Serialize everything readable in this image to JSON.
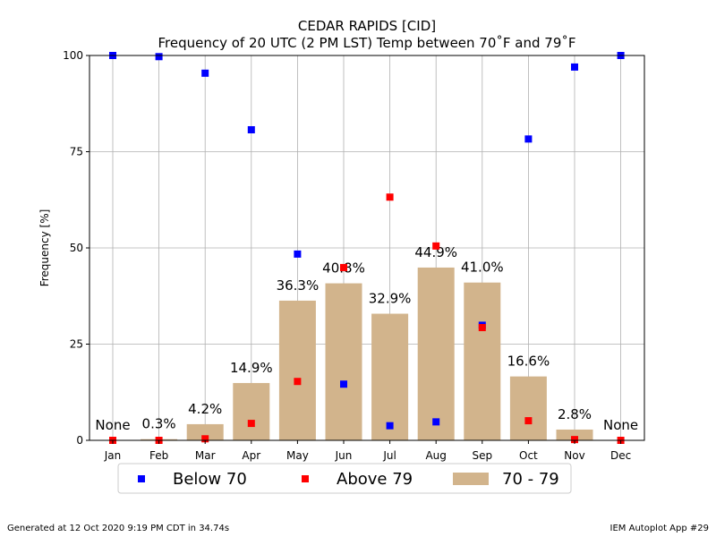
{
  "chart_data": {
    "type": "bar",
    "title": "CEDAR RAPIDS [CID]",
    "subtitle": "Frequency of 20 UTC (2 PM LST) Temp between 70˚F and 79˚F",
    "xlabel": "",
    "ylabel": "Frequency [%]",
    "ylim": [
      0,
      100
    ],
    "yticks": [
      "0",
      "25",
      "50",
      "75",
      "100"
    ],
    "grid": true,
    "legend_position": "bottom",
    "categories": [
      "Jan",
      "Feb",
      "Mar",
      "Apr",
      "May",
      "Jun",
      "Jul",
      "Aug",
      "Sep",
      "Oct",
      "Nov",
      "Dec"
    ],
    "series": [
      {
        "name": "70 - 79",
        "kind": "bar",
        "color": "#d2b48c",
        "values": [
          0,
          0.3,
          4.2,
          14.9,
          36.3,
          40.8,
          32.9,
          44.9,
          41.0,
          16.6,
          2.8,
          0
        ],
        "labels": [
          "None",
          "0.3%",
          "4.2%",
          "14.9%",
          "36.3%",
          "40.8%",
          "32.9%",
          "44.9%",
          "41.0%",
          "16.6%",
          "2.8%",
          "None"
        ]
      },
      {
        "name": "Below 70",
        "kind": "scatter",
        "color": "#0000ff",
        "values": [
          100,
          99.7,
          95.4,
          80.7,
          48.4,
          14.6,
          3.8,
          4.8,
          29.9,
          78.3,
          97.0,
          100
        ]
      },
      {
        "name": "Above 79",
        "kind": "scatter",
        "color": "#ff0000",
        "values": [
          0,
          0,
          0.4,
          4.4,
          15.3,
          44.9,
          63.2,
          50.5,
          29.3,
          5.1,
          0.2,
          0
        ]
      }
    ]
  },
  "footer": {
    "generated": "Generated at 12 Oct 2020 9:19 PM CDT in 34.74s",
    "app": "IEM Autoplot App #29"
  }
}
